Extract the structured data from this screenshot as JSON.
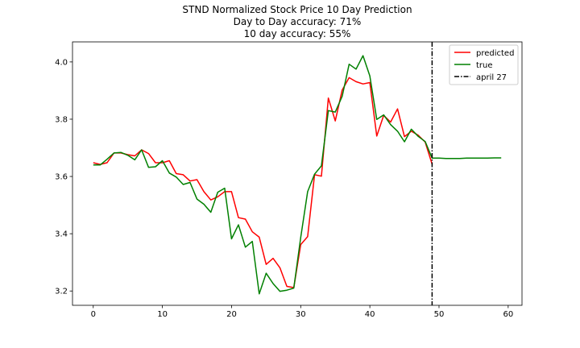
{
  "chart_data": {
    "type": "line",
    "title_lines": [
      "STND Normalized Stock Price 10 Day Prediction",
      "Day to Day accuracy: 71%",
      "10 day accuracy: 55%"
    ],
    "xlim": [
      -3,
      62
    ],
    "ylim": [
      3.15,
      4.07
    ],
    "xticks": [
      0,
      10,
      20,
      30,
      40,
      50,
      60
    ],
    "yticks": [
      3.2,
      3.4,
      3.6,
      3.8,
      4.0
    ],
    "xtick_labels": [
      "0",
      "10",
      "20",
      "30",
      "40",
      "50",
      "60"
    ],
    "ytick_labels": [
      "3.2",
      "3.4",
      "3.6",
      "3.8",
      "4.0"
    ],
    "vline": {
      "x": 49,
      "label": "april 27",
      "color": "#000000",
      "style": "dashdot"
    },
    "legend_position": "top-right",
    "series": [
      {
        "name": "predicted",
        "color": "#ff0000",
        "x": [
          0,
          1,
          2,
          3,
          4,
          5,
          6,
          7,
          8,
          9,
          10,
          11,
          12,
          13,
          14,
          15,
          16,
          17,
          18,
          19,
          20,
          21,
          22,
          23,
          24,
          25,
          26,
          27,
          28,
          29,
          30,
          31,
          32,
          33,
          34,
          35,
          36,
          37,
          38,
          39,
          40,
          41,
          42,
          43,
          44,
          45,
          46,
          47,
          48,
          49
        ],
        "y": [
          3.648,
          3.642,
          3.648,
          3.682,
          3.682,
          3.676,
          3.672,
          3.693,
          3.68,
          3.648,
          3.648,
          3.655,
          3.61,
          3.606,
          3.584,
          3.589,
          3.547,
          3.518,
          3.529,
          3.547,
          3.547,
          3.456,
          3.451,
          3.407,
          3.388,
          3.293,
          3.314,
          3.281,
          3.216,
          3.212,
          3.362,
          3.39,
          3.606,
          3.601,
          3.874,
          3.794,
          3.902,
          3.945,
          3.931,
          3.923,
          3.928,
          3.741,
          3.813,
          3.79,
          3.836,
          3.739,
          3.758,
          3.744,
          3.72,
          3.643
        ]
      },
      {
        "name": "true",
        "color": "#008000",
        "x": [
          0,
          1,
          2,
          3,
          4,
          5,
          6,
          7,
          8,
          9,
          10,
          11,
          12,
          13,
          14,
          15,
          16,
          17,
          18,
          19,
          20,
          21,
          22,
          23,
          24,
          25,
          26,
          27,
          28,
          29,
          30,
          31,
          32,
          33,
          34,
          35,
          36,
          37,
          38,
          39,
          40,
          41,
          42,
          43,
          44,
          45,
          46,
          47,
          48,
          49,
          50,
          51,
          52,
          53,
          54,
          55,
          56,
          57,
          58,
          59
        ],
        "y": [
          3.64,
          3.64,
          3.66,
          3.682,
          3.684,
          3.674,
          3.658,
          3.693,
          3.632,
          3.634,
          3.655,
          3.612,
          3.598,
          3.572,
          3.579,
          3.521,
          3.503,
          3.475,
          3.545,
          3.559,
          3.382,
          3.431,
          3.353,
          3.373,
          3.19,
          3.262,
          3.226,
          3.199,
          3.203,
          3.21,
          3.387,
          3.547,
          3.608,
          3.637,
          3.83,
          3.825,
          3.88,
          3.992,
          3.975,
          4.022,
          3.951,
          3.799,
          3.815,
          3.781,
          3.758,
          3.721,
          3.765,
          3.74,
          3.722,
          3.664,
          3.664,
          3.663,
          3.663,
          3.663,
          3.664,
          3.664,
          3.664,
          3.664,
          3.665,
          3.665
        ]
      }
    ]
  }
}
